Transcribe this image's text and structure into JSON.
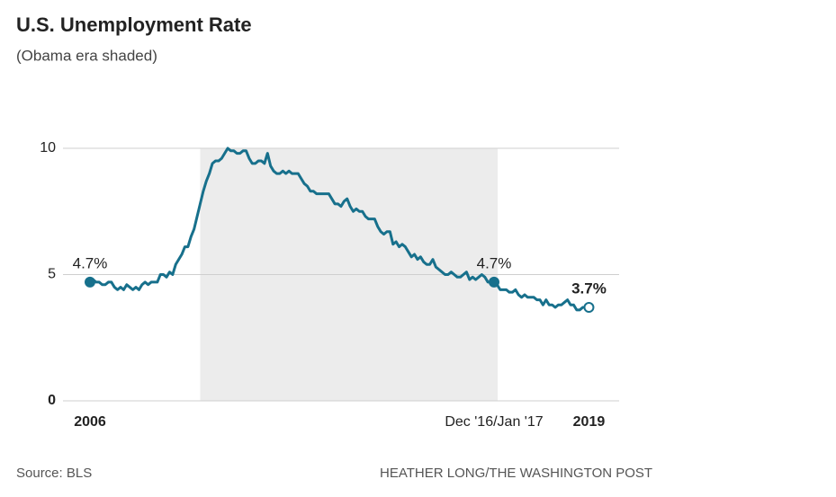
{
  "chart_data": {
    "type": "line",
    "title": "U.S. Unemployment Rate",
    "subtitle": "(Obama era shaded)",
    "source": "Source: BLS",
    "credit": "HEATHER LONG/THE WASHINGTON POST",
    "categories": [
      "2006",
      null,
      null,
      null,
      null,
      null,
      null,
      null,
      null,
      null,
      null,
      null,
      null,
      null,
      null,
      null,
      null,
      null,
      null,
      null,
      null,
      null,
      null,
      null,
      null,
      null,
      null,
      null,
      null,
      null,
      null,
      null,
      null,
      null,
      null,
      null,
      null,
      null,
      null,
      null,
      null,
      null,
      null,
      null,
      null,
      null,
      null,
      null,
      null,
      null,
      null,
      null,
      null,
      null,
      null,
      null,
      null,
      null,
      null,
      null,
      null,
      null,
      null,
      null,
      null,
      null,
      null,
      null,
      null,
      null,
      null,
      null,
      null,
      null,
      null,
      null,
      null,
      null,
      null,
      null,
      null,
      null,
      null,
      null,
      null,
      null,
      null,
      null,
      null,
      null,
      null,
      null,
      null,
      null,
      null,
      null,
      null,
      null,
      null,
      null,
      null,
      null,
      null,
      null,
      null,
      null,
      null,
      null,
      null,
      null,
      null,
      null,
      null,
      null,
      null,
      null,
      null,
      null,
      null,
      null,
      null,
      null,
      null,
      null,
      null,
      null,
      null,
      null,
      null,
      null,
      null,
      null,
      "Dec '16/Jan '17",
      null,
      null,
      null,
      null,
      null,
      null,
      null,
      null,
      null,
      null,
      null,
      null,
      null,
      null,
      null,
      null,
      null,
      null,
      null,
      null,
      null,
      null,
      null,
      null,
      null,
      null,
      null,
      null,
      null,
      null,
      "2019"
    ],
    "series": [
      {
        "name": "Unemployment rate",
        "color": "#17708c",
        "values": [
          4.7,
          4.8,
          4.7,
          4.7,
          4.6,
          4.6,
          4.7,
          4.7,
          4.5,
          4.4,
          4.5,
          4.4,
          4.6,
          4.5,
          4.4,
          4.5,
          4.4,
          4.6,
          4.7,
          4.6,
          4.7,
          4.7,
          4.7,
          5.0,
          5.0,
          4.9,
          5.1,
          5.0,
          5.4,
          5.6,
          5.8,
          6.1,
          6.1,
          6.5,
          6.8,
          7.3,
          7.8,
          8.3,
          8.7,
          9.0,
          9.4,
          9.5,
          9.5,
          9.6,
          9.8,
          10.0,
          9.9,
          9.9,
          9.8,
          9.8,
          9.9,
          9.9,
          9.6,
          9.4,
          9.4,
          9.5,
          9.5,
          9.4,
          9.8,
          9.3,
          9.1,
          9.0,
          9.0,
          9.1,
          9.0,
          9.1,
          9.0,
          9.0,
          9.0,
          8.8,
          8.6,
          8.5,
          8.3,
          8.3,
          8.2,
          8.2,
          8.2,
          8.2,
          8.2,
          8.0,
          7.8,
          7.8,
          7.7,
          7.9,
          8.0,
          7.7,
          7.5,
          7.6,
          7.5,
          7.5,
          7.3,
          7.2,
          7.2,
          7.2,
          6.9,
          6.7,
          6.6,
          6.7,
          6.7,
          6.2,
          6.3,
          6.1,
          6.2,
          6.1,
          5.9,
          5.7,
          5.8,
          5.6,
          5.7,
          5.5,
          5.4,
          5.4,
          5.6,
          5.3,
          5.2,
          5.1,
          5.0,
          5.0,
          5.1,
          5.0,
          4.9,
          4.9,
          5.0,
          5.1,
          4.8,
          4.9,
          4.8,
          4.9,
          5.0,
          4.9,
          4.7,
          4.7,
          4.7,
          4.6,
          4.4,
          4.4,
          4.4,
          4.3,
          4.3,
          4.4,
          4.2,
          4.1,
          4.2,
          4.1,
          4.1,
          4.1,
          4.0,
          4.0,
          3.8,
          4.0,
          3.8,
          3.8,
          3.7,
          3.8,
          3.8,
          3.9,
          4.0,
          3.8,
          3.8,
          3.6,
          3.6,
          3.7,
          3.7,
          3.7
        ]
      }
    ],
    "annotations": [
      {
        "text": "4.7%",
        "index": 0
      },
      {
        "text": "4.7%",
        "index": 132
      },
      {
        "text": "3.7%",
        "index": 163
      }
    ],
    "shaded_range": [
      36,
      132
    ],
    "shade_color": "#ececec",
    "ylim": [
      0,
      10
    ],
    "yticks": [
      0,
      5,
      10
    ],
    "grid": true
  }
}
